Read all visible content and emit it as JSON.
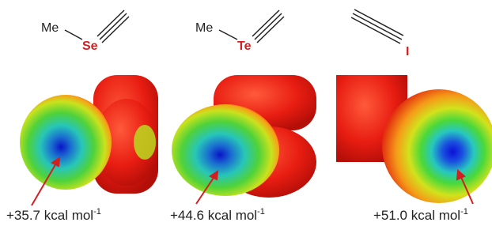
{
  "structures": [
    {
      "group": "Me",
      "atom": "Se"
    },
    {
      "group": "Me",
      "atom": "Te"
    },
    {
      "atom": "I"
    }
  ],
  "labels": [
    {
      "text": "+35.7 kcal mol",
      "superscript": "-1"
    },
    {
      "text": "+44.6 kcal mol",
      "superscript": "-1"
    },
    {
      "text": "+51.0 kcal mol",
      "superscript": "-1"
    }
  ]
}
